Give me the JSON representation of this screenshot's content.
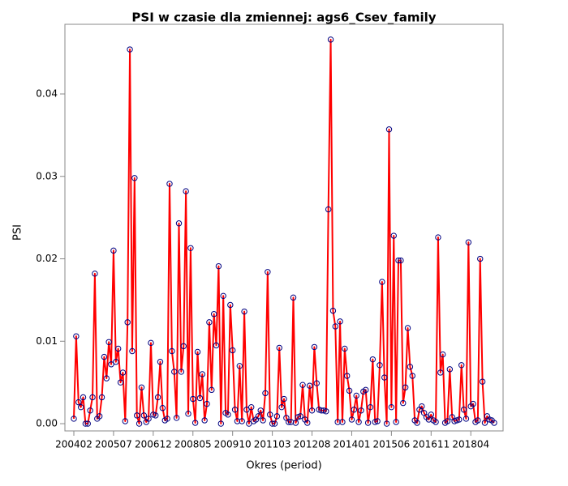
{
  "chart_data": {
    "type": "line",
    "title": "PSI w czasie dla zmiennej: ags6_Csev_family",
    "x_label": "Okres (period)",
    "y_label": "PSI",
    "categories": [
      "200402",
      null,
      null,
      null,
      null,
      null,
      null,
      null,
      null,
      null,
      null,
      null,
      null,
      null,
      null,
      null,
      null,
      "200507",
      null,
      null,
      null,
      null,
      null,
      null,
      null,
      null,
      null,
      null,
      null,
      null,
      null,
      null,
      null,
      null,
      "200612",
      null,
      null,
      null,
      null,
      null,
      null,
      null,
      null,
      null,
      null,
      null,
      null,
      null,
      null,
      null,
      null,
      "200805",
      null,
      null,
      null,
      null,
      null,
      null,
      null,
      null,
      null,
      null,
      null,
      null,
      null,
      null,
      null,
      null,
      "200910",
      null,
      null,
      null,
      null,
      null,
      null,
      null,
      null,
      null,
      null,
      null,
      null,
      null,
      null,
      null,
      null,
      "201103",
      null,
      null,
      null,
      null,
      null,
      null,
      null,
      null,
      null,
      null,
      null,
      null,
      null,
      null,
      null,
      null,
      "201208",
      null,
      null,
      null,
      null,
      null,
      null,
      null,
      null,
      null,
      null,
      null,
      null,
      null,
      null,
      null,
      null,
      "201401",
      null,
      null,
      null,
      null,
      null,
      null,
      null,
      null,
      null,
      null,
      null,
      null,
      null,
      null,
      null,
      null,
      "201506",
      null,
      null,
      null,
      null,
      null,
      null,
      null,
      null,
      null,
      null,
      null,
      null,
      null,
      null,
      null,
      null,
      "201611",
      null,
      null,
      null,
      null,
      null,
      null,
      null,
      null,
      null,
      null,
      null,
      null,
      null,
      null,
      null,
      null,
      "201804",
      null,
      null,
      null,
      null,
      null,
      null,
      null,
      null,
      null,
      null
    ],
    "series": [
      {
        "name": "PSI",
        "color": "#ff0000",
        "marker_color": "#000080",
        "values": [
          0.0006,
          0.0106,
          0.0026,
          0.002,
          0.0032,
          0,
          0,
          0.0016,
          0.0032,
          0.0182,
          0.0006,
          0.0009,
          0.0032,
          0.0081,
          0.0055,
          0.0099,
          0.0072,
          0.021,
          0.0075,
          0.0091,
          0.005,
          0.0062,
          0.0003,
          0.0123,
          0.0454,
          0.0088,
          0.0298,
          0.001,
          0,
          0.0044,
          0.001,
          0.0002,
          0.0006,
          0.0098,
          0.0011,
          0.001,
          0.0032,
          0.0075,
          0.0019,
          0.0004,
          0.0006,
          0.0291,
          0.0088,
          0.0063,
          0.0007,
          0.0243,
          0.0063,
          0.0094,
          0.0282,
          0.0012,
          0.0213,
          0.003,
          0.0001,
          0.0087,
          0.0031,
          0.006,
          0.0004,
          0.0024,
          0.0123,
          0.0041,
          0.0133,
          0.0095,
          0.0191,
          0,
          0.0155,
          0.0013,
          0.0011,
          0.0144,
          0.0089,
          0.0017,
          0.0003,
          0.007,
          0.0003,
          0.0136,
          0.0017,
          0,
          0.002,
          0.0003,
          0.0005,
          0.0009,
          0.0016,
          0.0004,
          0.0037,
          0.0184,
          0.0011,
          0,
          0,
          0.0009,
          0.0092,
          0.002,
          0.003,
          0.0007,
          0.0002,
          0.0002,
          0.0153,
          0.0001,
          0.0008,
          0.0009,
          0.0047,
          0.0005,
          0.0001,
          0.0046,
          0.0016,
          0.0093,
          0.0049,
          0.0017,
          0.0016,
          0.0016,
          0.0015,
          0.026,
          0.0466,
          0.0137,
          0.0118,
          0.0002,
          0.0124,
          0.0002,
          0.0091,
          0.0058,
          0.004,
          0.0005,
          0.0017,
          0.0034,
          0.0002,
          0.0016,
          0.0039,
          0.0041,
          0.0001,
          0.002,
          0.0078,
          0.0002,
          0.0003,
          0.0071,
          0.0172,
          0.0056,
          0,
          0.0357,
          0.002,
          0.0228,
          0.0002,
          0.0198,
          0.0198,
          0.0025,
          0.0044,
          0.0116,
          0.0069,
          0.0058,
          0.0004,
          0.0001,
          0.0017,
          0.0021,
          0.0013,
          0.0008,
          0.0005,
          0.0011,
          0.0004,
          0.0002,
          0.0226,
          0.0062,
          0.0084,
          0.0001,
          0.0003,
          0.0066,
          0.0008,
          0.0003,
          0.0004,
          0.0005,
          0.0071,
          0.0017,
          0.0006,
          0.022,
          0.0021,
          0.0024,
          0.0002,
          0.0004,
          0.02,
          0.0051,
          0.0001,
          0.0009,
          0.0005,
          0.0004,
          0.0001
        ]
      }
    ],
    "ylim": [
      -0.00088,
      0.04845
    ],
    "yticks": [
      {
        "value": 0,
        "label": "0.00"
      },
      {
        "value": 0.01,
        "label": "0.01"
      },
      {
        "value": 0.02,
        "label": "0.02"
      },
      {
        "value": 0.03,
        "label": "0.03"
      },
      {
        "value": 0.04,
        "label": "0.04"
      }
    ],
    "grid": false
  }
}
